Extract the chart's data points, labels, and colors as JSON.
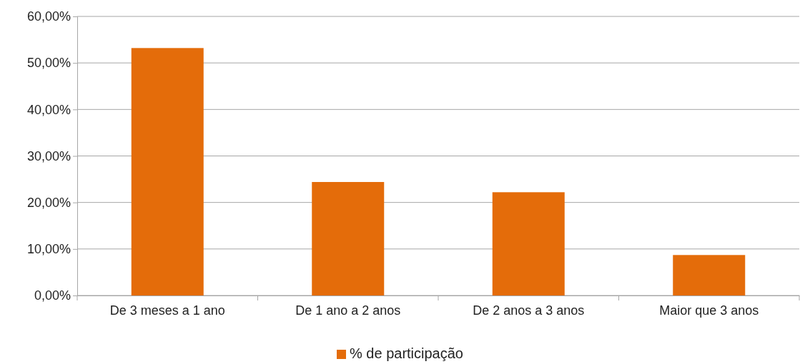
{
  "chart_data": {
    "type": "bar",
    "categories": [
      "De 3 meses a 1 ano",
      "De 1 ano a 2 anos",
      "De 2 anos a 3 anos",
      "Maior que 3 anos"
    ],
    "series": [
      {
        "name": "% de participação",
        "color": "#e46c0a",
        "values": [
          53.2,
          24.4,
          22.2,
          8.7
        ]
      }
    ],
    "ylim": [
      0,
      60
    ],
    "yticks": [
      {
        "value": 0,
        "label": "0,00%"
      },
      {
        "value": 10,
        "label": "10,00%"
      },
      {
        "value": 20,
        "label": "20,00%"
      },
      {
        "value": 30,
        "label": "30,00%"
      },
      {
        "value": 40,
        "label": "40,00%"
      },
      {
        "value": 50,
        "label": "50,00%"
      },
      {
        "value": 60,
        "label": "60,00%"
      }
    ],
    "grid": "y",
    "legend": "bottom"
  }
}
